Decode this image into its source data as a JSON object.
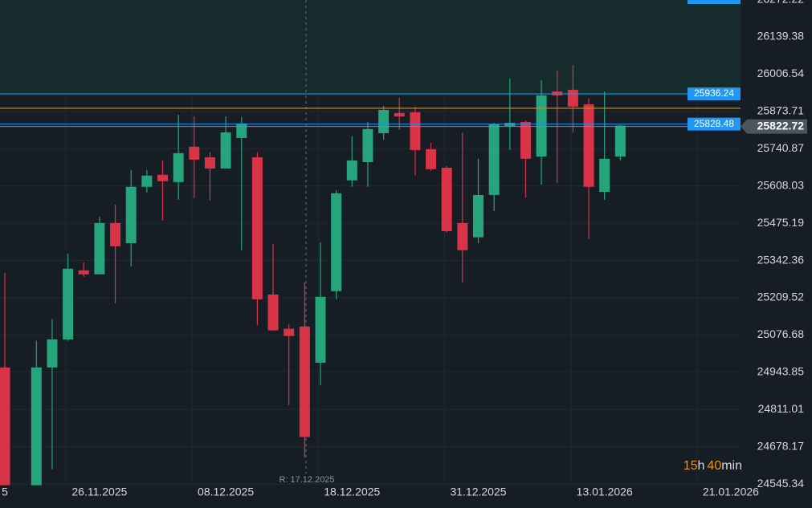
{
  "chart_data": {
    "type": "candlestick",
    "categories": [
      "5",
      null,
      null,
      null,
      null,
      null,
      "26.11.2025",
      null,
      null,
      null,
      null,
      null,
      null,
      null,
      "08.12.2025",
      null,
      null,
      null,
      null,
      null,
      null,
      null,
      "18.12.2025",
      null,
      null,
      null,
      null,
      null,
      null,
      null,
      "31.12.2025",
      null,
      null,
      null,
      null,
      null,
      null,
      null,
      "13.01.2026",
      null,
      null,
      null,
      null,
      null,
      null,
      null,
      "21.01.2026"
    ],
    "open": [
      24961,
      null,
      24541,
      24961,
      25061,
      25307,
      25293,
      25476,
      25404,
      25605,
      25648,
      25622,
      25748,
      25710,
      25670,
      25779,
      25710,
      25221,
      25099,
      25107,
      24978,
      25233,
      25628,
      25693,
      25796,
      25868,
      25871,
      25739,
      25673,
      25476,
      25425,
      25576,
      25822,
      25836,
      25713,
      25945,
      25951,
      25899,
      25587,
      25713,
      null,
      null,
      null,
      null,
      null,
      null,
      null
    ],
    "high": [
      25299,
      null,
      25056,
      25133,
      25367,
      25336,
      25499,
      25542,
      25665,
      25665,
      25699,
      25862,
      25856,
      25728,
      25856,
      25853,
      25728,
      25401,
      25116,
      25264,
      25407,
      25593,
      25785,
      25836,
      25893,
      25922,
      25891,
      25762,
      25679,
      25799,
      25705,
      25833,
      25991,
      25842,
      25985,
      26019,
      26039,
      25919,
      25945,
      25825,
      null,
      null,
      null,
      null,
      null,
      null,
      null
    ],
    "low": [
      24541,
      null,
      24541,
      24598,
      25056,
      25284,
      25293,
      25190,
      25322,
      25585,
      25485,
      25559,
      25565,
      25556,
      25670,
      25379,
      25113,
      25093,
      24827,
      24641,
      24898,
      25204,
      25605,
      25605,
      25773,
      25808,
      25645,
      25662,
      25442,
      25264,
      25404,
      25519,
      25736,
      25567,
      25613,
      25619,
      25799,
      25419,
      25559,
      25699,
      null,
      null,
      null,
      null,
      null,
      null,
      null
    ],
    "close": [
      24541,
      null,
      24961,
      25061,
      25313,
      25293,
      25476,
      25393,
      25605,
      25645,
      25625,
      25725,
      25702,
      25670,
      25799,
      25831,
      25204,
      25093,
      25073,
      24713,
      25213,
      25582,
      25699,
      25811,
      25879,
      25856,
      25736,
      25668,
      25447,
      25379,
      25576,
      25828,
      25833,
      25705,
      25931,
      25931,
      25891,
      25605,
      25705,
      25823,
      null,
      null,
      null,
      null,
      null,
      null,
      null
    ],
    "up_color": "#26a47c",
    "down_color": "#d93347",
    "ylim": [
      24540,
      26271
    ],
    "yticks": [
      24545.34,
      24678.17,
      24811.01,
      24943.85,
      25076.68,
      25209.52,
      25342.36,
      25475.19,
      25608.03,
      25740.87,
      25873.71,
      26006.54,
      26139.38,
      26272.22
    ],
    "grid": true,
    "price_lines": [
      {
        "value": 25936.24,
        "color": "#2196f3"
      },
      {
        "value": 25828.48,
        "color": "#2196f3"
      }
    ],
    "order_line": {
      "value": 25885,
      "color": "#b8893a"
    },
    "last_price": 25822.72,
    "replay_label": "R: 17.12.2025",
    "countdown": {
      "hours": 15,
      "hours_unit": "h",
      "minutes": 40,
      "minutes_unit": "min"
    }
  }
}
